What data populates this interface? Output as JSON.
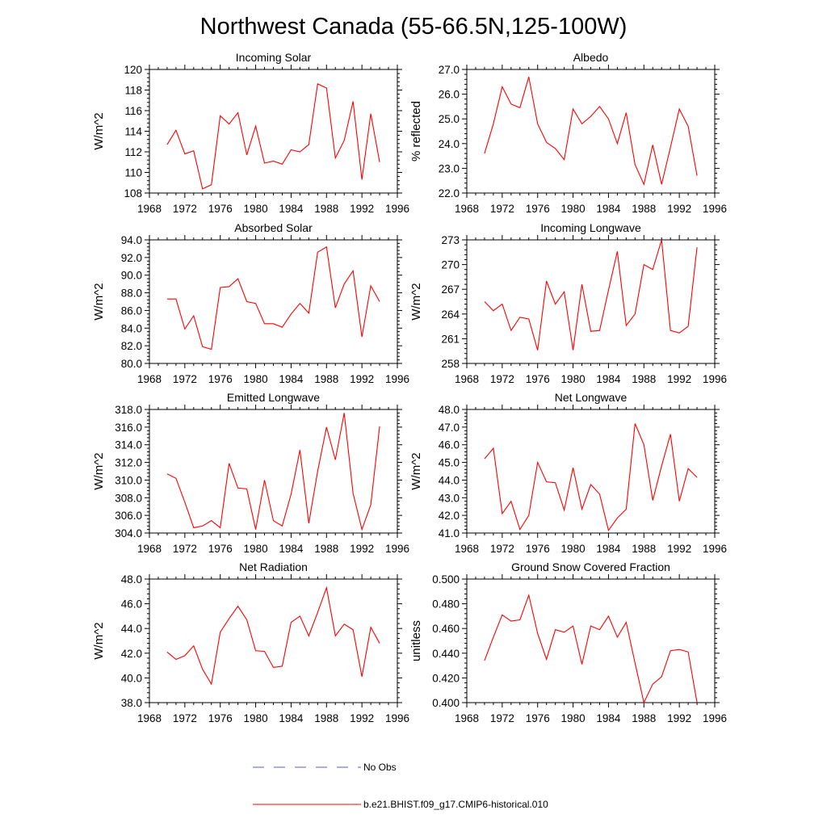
{
  "title": "Northwest Canada (55-66.5N,125-100W)",
  "legend": [
    {
      "label": "No Obs",
      "color": "#5a5acd",
      "dash": true
    },
    {
      "label": "b.e21.BHIST.f09_g17.CMIP6-historical.010",
      "color": "#ff0000",
      "dash": false
    }
  ],
  "chart_data": [
    {
      "type": "line",
      "title": "Incoming Solar",
      "ylabel": "W/m^2",
      "xlim": [
        1968,
        1996
      ],
      "xticks": [
        1968,
        1972,
        1976,
        1980,
        1984,
        1988,
        1992,
        1996
      ],
      "ylim": [
        108,
        120
      ],
      "yticks": [
        108,
        110,
        112,
        114,
        116,
        118,
        120
      ],
      "ytick_labels": [
        "108",
        "110",
        "112",
        "114",
        "116",
        "118",
        "120"
      ],
      "x": [
        1970,
        1971,
        1972,
        1973,
        1974,
        1975,
        1976,
        1977,
        1978,
        1979,
        1980,
        1981,
        1982,
        1983,
        1984,
        1985,
        1986,
        1987,
        1988,
        1989,
        1990,
        1991,
        1992,
        1993,
        1994
      ],
      "series": [
        {
          "name": "b.e21.BHIST.f09_g17.CMIP6-historical.010",
          "values": [
            112.7,
            114.1,
            111.8,
            112.1,
            108.4,
            108.8,
            115.5,
            114.7,
            115.8,
            111.7,
            114.5,
            110.9,
            111.1,
            110.8,
            112.2,
            112.0,
            112.7,
            118.6,
            118.2,
            111.4,
            113.1,
            116.9,
            109.3,
            115.7,
            111.0
          ]
        }
      ]
    },
    {
      "type": "line",
      "title": "Albedo",
      "ylabel": "% reflected",
      "xlim": [
        1968,
        1996
      ],
      "xticks": [
        1968,
        1972,
        1976,
        1980,
        1984,
        1988,
        1992,
        1996
      ],
      "ylim": [
        22.0,
        27.0
      ],
      "yticks": [
        22,
        23,
        24,
        25,
        26,
        27
      ],
      "ytick_labels": [
        "22.0",
        "23.0",
        "24.0",
        "25.0",
        "26.0",
        "27.0"
      ],
      "x": [
        1970,
        1971,
        1972,
        1973,
        1974,
        1975,
        1976,
        1977,
        1978,
        1979,
        1980,
        1981,
        1982,
        1983,
        1984,
        1985,
        1986,
        1987,
        1988,
        1989,
        1990,
        1991,
        1992,
        1993,
        1994
      ],
      "series": [
        {
          "name": "b.e21.BHIST.f09_g17.CMIP6-historical.010",
          "values": [
            23.6,
            24.8,
            26.3,
            25.6,
            25.45,
            26.7,
            24.8,
            24.05,
            23.8,
            23.35,
            25.4,
            24.8,
            25.1,
            25.5,
            25.0,
            24.0,
            25.25,
            23.15,
            22.35,
            23.95,
            22.35,
            23.85,
            25.4,
            24.7,
            22.7
          ]
        }
      ]
    },
    {
      "type": "line",
      "title": "Absorbed Solar",
      "ylabel": "W/m^2",
      "xlim": [
        1968,
        1996
      ],
      "xticks": [
        1968,
        1972,
        1976,
        1980,
        1984,
        1988,
        1992,
        1996
      ],
      "ylim": [
        80.0,
        94.0
      ],
      "yticks": [
        80,
        82,
        84,
        86,
        88,
        90,
        92,
        94
      ],
      "ytick_labels": [
        "80.0",
        "82.0",
        "84.0",
        "86.0",
        "88.0",
        "90.0",
        "92.0",
        "94.0"
      ],
      "x": [
        1970,
        1971,
        1972,
        1973,
        1974,
        1975,
        1976,
        1977,
        1978,
        1979,
        1980,
        1981,
        1982,
        1983,
        1984,
        1985,
        1986,
        1987,
        1988,
        1989,
        1990,
        1991,
        1992,
        1993,
        1994
      ],
      "series": [
        {
          "name": "b.e21.BHIST.f09_g17.CMIP6-historical.010",
          "values": [
            87.3,
            87.3,
            83.9,
            85.4,
            81.9,
            81.6,
            88.6,
            88.7,
            89.6,
            87.0,
            86.8,
            84.5,
            84.5,
            84.1,
            85.6,
            86.8,
            85.7,
            92.6,
            93.2,
            86.3,
            89.0,
            90.5,
            83.0,
            88.8,
            87.0
          ]
        }
      ]
    },
    {
      "type": "line",
      "title": "Incoming Longwave",
      "ylabel": "W/m^2",
      "xlim": [
        1968,
        1996
      ],
      "xticks": [
        1968,
        1972,
        1976,
        1980,
        1984,
        1988,
        1992,
        1996
      ],
      "ylim": [
        258,
        273
      ],
      "yticks": [
        258,
        261,
        264,
        267,
        270,
        273
      ],
      "ytick_labels": [
        "258",
        "261",
        "264",
        "267",
        "270",
        "273"
      ],
      "x": [
        1970,
        1971,
        1972,
        1973,
        1974,
        1975,
        1976,
        1977,
        1978,
        1979,
        1980,
        1981,
        1982,
        1983,
        1984,
        1985,
        1986,
        1987,
        1988,
        1989,
        1990,
        1991,
        1992,
        1993,
        1994
      ],
      "series": [
        {
          "name": "b.e21.BHIST.f09_g17.CMIP6-historical.010",
          "values": [
            265.5,
            264.4,
            265.2,
            262.0,
            263.6,
            263.4,
            259.6,
            268.0,
            265.2,
            266.7,
            259.6,
            267.6,
            261.9,
            262.0,
            266.9,
            271.6,
            262.6,
            264.0,
            270.0,
            269.4,
            273.0,
            262.0,
            261.7,
            262.5,
            272.1
          ]
        }
      ]
    },
    {
      "type": "line",
      "title": "Emitted Longwave",
      "ylabel": "W/m^2",
      "xlim": [
        1968,
        1996
      ],
      "xticks": [
        1968,
        1972,
        1976,
        1980,
        1984,
        1988,
        1992,
        1996
      ],
      "ylim": [
        304.0,
        318.0
      ],
      "yticks": [
        304,
        306,
        308,
        310,
        312,
        314,
        316,
        318
      ],
      "ytick_labels": [
        "304.0",
        "306.0",
        "308.0",
        "310.0",
        "312.0",
        "314.0",
        "316.0",
        "318.0"
      ],
      "x": [
        1970,
        1971,
        1972,
        1973,
        1974,
        1975,
        1976,
        1977,
        1978,
        1979,
        1980,
        1981,
        1982,
        1983,
        1984,
        1985,
        1986,
        1987,
        1988,
        1989,
        1990,
        1991,
        1992,
        1993,
        1994
      ],
      "series": [
        {
          "name": "b.e21.BHIST.f09_g17.CMIP6-historical.010",
          "values": [
            310.7,
            310.2,
            307.5,
            304.6,
            304.8,
            305.4,
            304.6,
            311.9,
            309.1,
            309.0,
            304.4,
            310.0,
            305.4,
            304.8,
            308.4,
            313.4,
            305.1,
            311.0,
            316.0,
            312.3,
            317.6,
            308.5,
            304.4,
            307.2,
            316.1
          ]
        }
      ]
    },
    {
      "type": "line",
      "title": "Net Longwave",
      "ylabel": "W/m^2",
      "xlim": [
        1968,
        1996
      ],
      "xticks": [
        1968,
        1972,
        1976,
        1980,
        1984,
        1988,
        1992,
        1996
      ],
      "ylim": [
        41.0,
        48.0
      ],
      "yticks": [
        41,
        42,
        43,
        44,
        45,
        46,
        47,
        48
      ],
      "ytick_labels": [
        "41.0",
        "42.0",
        "43.0",
        "44.0",
        "45.0",
        "46.0",
        "47.0",
        "48.0"
      ],
      "x": [
        1970,
        1971,
        1972,
        1973,
        1974,
        1975,
        1976,
        1977,
        1978,
        1979,
        1980,
        1981,
        1982,
        1983,
        1984,
        1985,
        1986,
        1987,
        1988,
        1989,
        1990,
        1991,
        1992,
        1993,
        1994
      ],
      "series": [
        {
          "name": "b.e21.BHIST.f09_g17.CMIP6-historical.010",
          "values": [
            45.2,
            45.8,
            42.1,
            42.8,
            41.2,
            42.0,
            45.0,
            43.9,
            43.85,
            42.3,
            44.7,
            42.35,
            43.75,
            43.2,
            41.15,
            41.85,
            42.35,
            47.2,
            46.0,
            42.85,
            44.8,
            46.6,
            42.8,
            44.65,
            44.15
          ]
        }
      ]
    },
    {
      "type": "line",
      "title": "Net Radiation",
      "ylabel": "W/m^2",
      "xlim": [
        1968,
        1996
      ],
      "xticks": [
        1968,
        1972,
        1976,
        1980,
        1984,
        1988,
        1992,
        1996
      ],
      "ylim": [
        38.0,
        48.0
      ],
      "yticks": [
        38,
        40,
        42,
        44,
        46,
        48
      ],
      "ytick_labels": [
        "38.0",
        "40.0",
        "42.0",
        "44.0",
        "46.0",
        "48.0"
      ],
      "x": [
        1970,
        1971,
        1972,
        1973,
        1974,
        1975,
        1976,
        1977,
        1978,
        1979,
        1980,
        1981,
        1982,
        1983,
        1984,
        1985,
        1986,
        1987,
        1988,
        1989,
        1990,
        1991,
        1992,
        1993,
        1994
      ],
      "series": [
        {
          "name": "b.e21.BHIST.f09_g17.CMIP6-historical.010",
          "values": [
            42.1,
            41.5,
            41.8,
            42.6,
            40.7,
            39.5,
            43.7,
            44.8,
            45.8,
            44.7,
            42.2,
            42.15,
            40.85,
            40.95,
            44.5,
            45.0,
            43.4,
            45.3,
            47.3,
            43.4,
            44.35,
            43.9,
            40.1,
            44.1,
            42.8
          ]
        }
      ]
    },
    {
      "type": "line",
      "title": "Ground Snow Covered Fraction",
      "ylabel": "unitless",
      "xlim": [
        1968,
        1996
      ],
      "xticks": [
        1968,
        1972,
        1976,
        1980,
        1984,
        1988,
        1992,
        1996
      ],
      "ylim": [
        0.4,
        0.5
      ],
      "yticks": [
        0.4,
        0.42,
        0.44,
        0.46,
        0.48,
        0.5
      ],
      "ytick_labels": [
        "0.400",
        "0.420",
        "0.440",
        "0.460",
        "0.480",
        "0.500"
      ],
      "x": [
        1970,
        1971,
        1972,
        1973,
        1974,
        1975,
        1976,
        1977,
        1978,
        1979,
        1980,
        1981,
        1982,
        1983,
        1984,
        1985,
        1986,
        1987,
        1988,
        1989,
        1990,
        1991,
        1992,
        1993,
        1994
      ],
      "series": [
        {
          "name": "b.e21.BHIST.f09_g17.CMIP6-historical.010",
          "values": [
            0.434,
            0.453,
            0.471,
            0.466,
            0.467,
            0.487,
            0.456,
            0.435,
            0.459,
            0.457,
            0.462,
            0.431,
            0.462,
            0.459,
            0.47,
            0.453,
            0.465,
            0.432,
            0.4,
            0.415,
            0.421,
            0.442,
            0.443,
            0.441,
            0.4
          ]
        }
      ]
    }
  ]
}
